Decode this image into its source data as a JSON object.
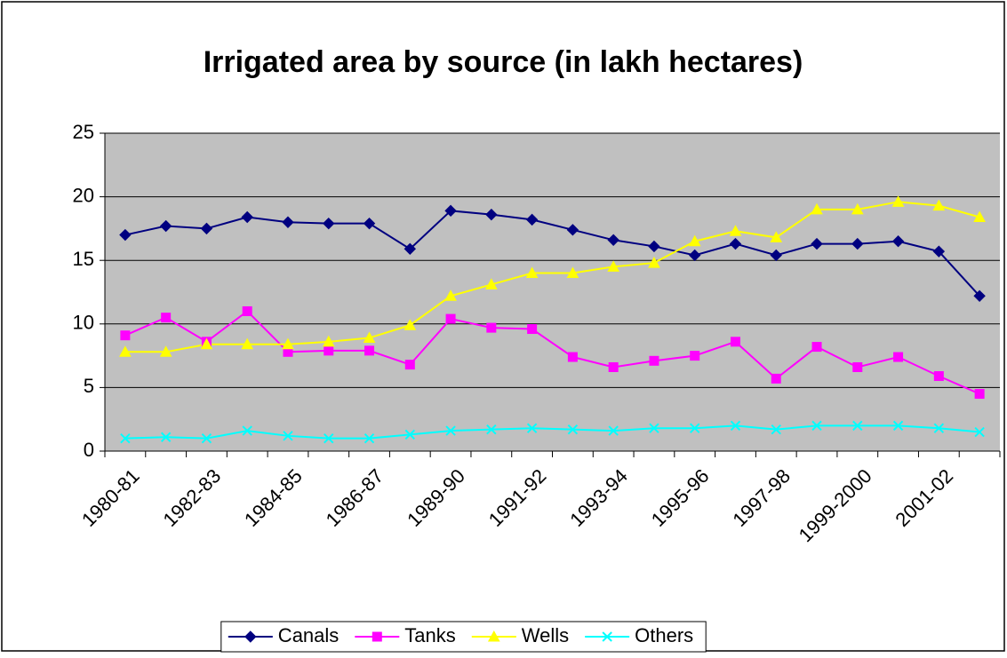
{
  "chart_data": {
    "type": "line",
    "title": "Irrigated area by source (in lakh hectares)",
    "categories": [
      "1980-81",
      null,
      "1982-83",
      null,
      "1984-85",
      null,
      "1986-87",
      null,
      "1989-90",
      null,
      "1991-92",
      null,
      "1993-94",
      null,
      "1995-96",
      null,
      "1997-98",
      null,
      "1999-2000",
      null,
      "2001-02",
      null
    ],
    "series": [
      {
        "name": "Canals",
        "color": "#000080",
        "marker": "diamond",
        "values": [
          17.0,
          17.7,
          17.5,
          18.4,
          18.0,
          17.9,
          17.9,
          15.9,
          18.9,
          18.6,
          18.2,
          17.4,
          16.6,
          16.1,
          15.4,
          16.3,
          15.4,
          16.3,
          16.3,
          16.5,
          15.7,
          12.2
        ]
      },
      {
        "name": "Tanks",
        "color": "#ff00ff",
        "marker": "square",
        "values": [
          9.1,
          10.5,
          8.6,
          11.0,
          7.8,
          7.9,
          7.9,
          6.8,
          10.4,
          9.7,
          9.6,
          7.4,
          6.6,
          7.1,
          7.5,
          8.6,
          5.7,
          8.2,
          6.6,
          7.4,
          5.9,
          4.5
        ]
      },
      {
        "name": "Wells",
        "color": "#ffff00",
        "marker": "triangle",
        "values": [
          7.8,
          7.8,
          8.4,
          8.4,
          8.4,
          8.6,
          8.9,
          9.9,
          12.2,
          13.1,
          14.0,
          14.0,
          14.5,
          14.8,
          16.5,
          17.3,
          16.8,
          19.0,
          19.0,
          19.6,
          19.3,
          18.4
        ]
      },
      {
        "name": "Others",
        "color": "#00ffff",
        "marker": "x",
        "values": [
          1.0,
          1.1,
          1.0,
          1.6,
          1.2,
          1.0,
          1.0,
          1.3,
          1.6,
          1.7,
          1.8,
          1.7,
          1.6,
          1.8,
          1.8,
          2.0,
          1.7,
          2.0,
          2.0,
          2.0,
          1.8,
          1.5
        ]
      }
    ],
    "ylim": [
      0,
      25
    ],
    "yticks": [
      0,
      5,
      10,
      15,
      20,
      25
    ],
    "grid": true,
    "legend": "bottom"
  }
}
